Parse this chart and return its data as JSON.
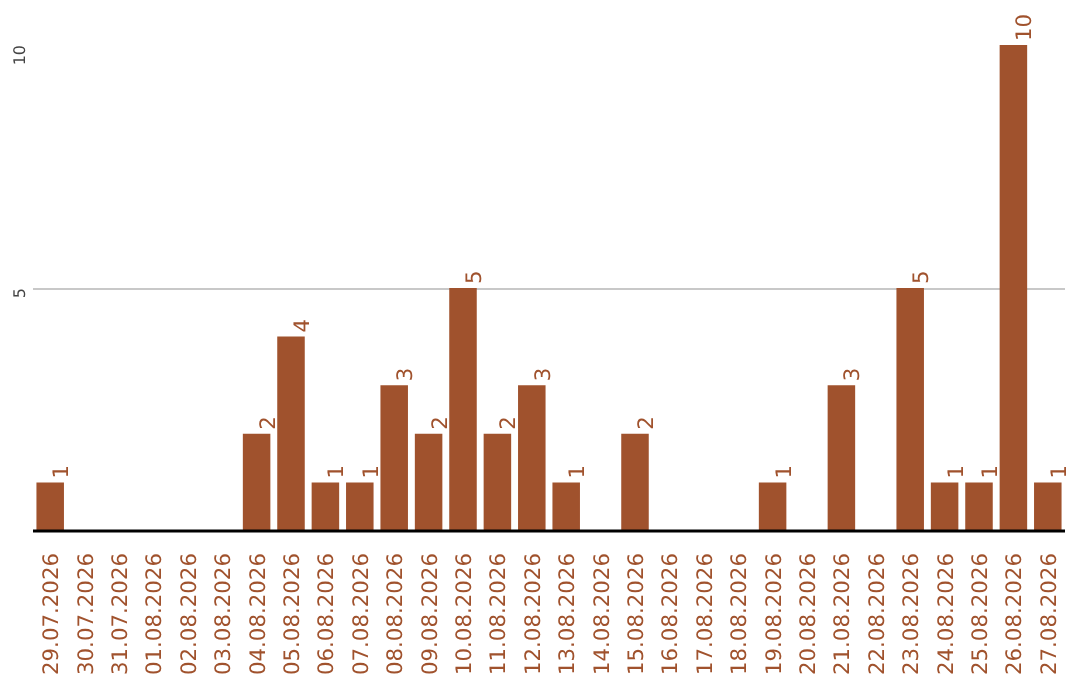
{
  "chart_data": {
    "type": "bar",
    "categories": [
      "29.07.2026",
      "30.07.2026",
      "31.07.2026",
      "01.08.2026",
      "02.08.2026",
      "03.08.2026",
      "04.08.2026",
      "05.08.2026",
      "06.08.2026",
      "07.08.2026",
      "08.08.2026",
      "09.08.2026",
      "10.08.2026",
      "11.08.2026",
      "12.08.2026",
      "13.08.2026",
      "14.08.2026",
      "15.08.2026",
      "16.08.2026",
      "17.08.2026",
      "18.08.2026",
      "19.08.2026",
      "20.08.2026",
      "21.08.2026",
      "22.08.2026",
      "23.08.2026",
      "24.08.2026",
      "25.08.2026",
      "26.08.2026",
      "27.08.2026"
    ],
    "values": [
      1,
      0,
      0,
      0,
      0,
      0,
      2,
      4,
      1,
      1,
      3,
      2,
      5,
      2,
      3,
      1,
      0,
      2,
      0,
      0,
      0,
      1,
      0,
      3,
      0,
      5,
      1,
      1,
      10,
      1
    ],
    "value_labels": [
      "1",
      null,
      null,
      null,
      null,
      null,
      "2",
      "4",
      "1",
      "1",
      "3",
      "2",
      "5",
      "2",
      "3",
      "1",
      null,
      "2",
      null,
      null,
      null,
      "1",
      null,
      "3",
      null,
      "5",
      "1",
      "1",
      "10",
      "1"
    ],
    "color": "#a0522d",
    "ylim": [
      0,
      10
    ],
    "yticks": [
      5,
      10
    ],
    "grid": "y"
  }
}
